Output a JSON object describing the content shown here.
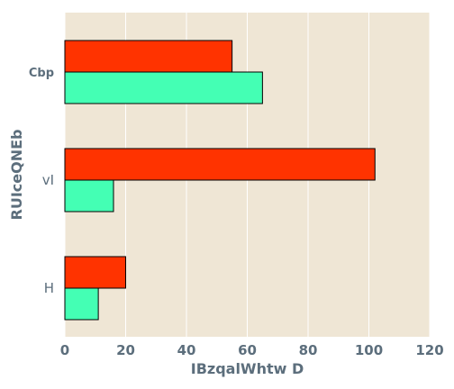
{
  "chart_data": {
    "type": "bar",
    "orientation": "horizontal",
    "categories": [
      "Cbp",
      "vI",
      "H"
    ],
    "series": [
      {
        "color": "#ff3300",
        "values": [
          55,
          102,
          20
        ]
      },
      {
        "color": "#44ffb4",
        "values": [
          65,
          16,
          11
        ]
      }
    ],
    "xlabel": "IBzqalWhtw D",
    "ylabel": "RUIceQNEb",
    "xlim": [
      0,
      120
    ],
    "xticks": [
      0,
      20,
      40,
      60,
      80,
      100,
      120
    ],
    "grid": true,
    "legend": "none",
    "colors": {
      "plot_background": "#efe6d5",
      "grid": "#ffffff",
      "text": "#5c6e7c"
    }
  }
}
